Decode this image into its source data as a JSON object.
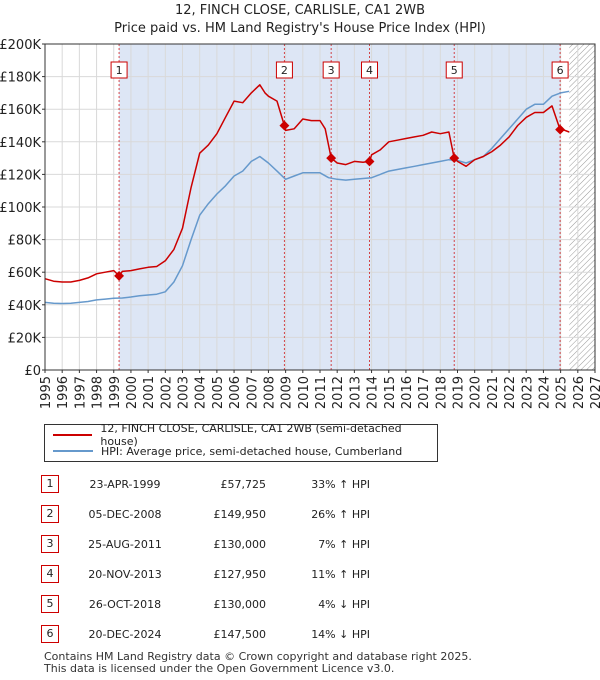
{
  "title_line1": "12, FINCH CLOSE, CARLISLE, CA1 2WB",
  "title_line2": "Price paid vs. HM Land Registry's House Price Index (HPI)",
  "colors": {
    "property": "#cc0000",
    "hpi": "#6699cc",
    "shade": "#dde6f5",
    "grid": "#d9d9d9",
    "marker_box": "#cc0000"
  },
  "chart_data": {
    "type": "line",
    "xlim": [
      1995,
      2027
    ],
    "ylim": [
      0,
      200000
    ],
    "x_ticks": [
      "1995",
      "1996",
      "1997",
      "1998",
      "1999",
      "2000",
      "2001",
      "2002",
      "2003",
      "2004",
      "2005",
      "2006",
      "2007",
      "2008",
      "2009",
      "2010",
      "2011",
      "2012",
      "2013",
      "2014",
      "2015",
      "2016",
      "2017",
      "2018",
      "2019",
      "2020",
      "2021",
      "2022",
      "2023",
      "2024",
      "2025",
      "2026",
      "2027"
    ],
    "y_ticks": [
      {
        "value": 0,
        "label": "£0"
      },
      {
        "value": 20000,
        "label": "£20K"
      },
      {
        "value": 40000,
        "label": "£40K"
      },
      {
        "value": 60000,
        "label": "£60K"
      },
      {
        "value": 80000,
        "label": "£80K"
      },
      {
        "value": 100000,
        "label": "£100K"
      },
      {
        "value": 120000,
        "label": "£120K"
      },
      {
        "value": 140000,
        "label": "£140K"
      },
      {
        "value": 160000,
        "label": "£160K"
      },
      {
        "value": 180000,
        "label": "£180K"
      },
      {
        "value": 200000,
        "label": "£200K"
      }
    ],
    "shaded_span": [
      1999.31,
      2024.97
    ],
    "hatched_from": 2025.5,
    "series": [
      {
        "name": "12, FINCH CLOSE, CARLISLE, CA1 2WB (semi-detached house)",
        "color": "#cc0000",
        "x": [
          1995,
          1995.5,
          1996,
          1996.5,
          1997,
          1997.5,
          1998,
          1998.5,
          1999,
          1999.31,
          1999.5,
          2000,
          2000.5,
          2001,
          2001.5,
          2002,
          2002.5,
          2003,
          2003.5,
          2004,
          2004.5,
          2005,
          2005.5,
          2006,
          2006.5,
          2007,
          2007.5,
          2007.8,
          2008,
          2008.5,
          2008.93,
          2009,
          2009.5,
          2010,
          2010.5,
          2011,
          2011.3,
          2011.65,
          2012,
          2012.5,
          2013,
          2013.5,
          2013.88,
          2014,
          2014.5,
          2015,
          2015.5,
          2016,
          2016.5,
          2017,
          2017.5,
          2018,
          2018.5,
          2018.81,
          2019,
          2019.5,
          2020,
          2020.5,
          2021,
          2021.5,
          2022,
          2022.5,
          2023,
          2023.5,
          2024,
          2024.5,
          2024.97,
          2025,
          2025.5
        ],
        "y": [
          56000,
          54500,
          54000,
          54000,
          55000,
          56500,
          59000,
          60000,
          61000,
          57725,
          60500,
          61000,
          62000,
          63000,
          63500,
          67000,
          74000,
          87000,
          112000,
          133000,
          138000,
          145000,
          155000,
          165000,
          164000,
          170000,
          175000,
          170000,
          168000,
          165000,
          149950,
          147000,
          148000,
          154000,
          153000,
          153000,
          148000,
          130000,
          127000,
          126000,
          128000,
          127500,
          127950,
          132000,
          135000,
          140000,
          141000,
          142000,
          143000,
          144000,
          146000,
          145000,
          146000,
          130000,
          128000,
          125000,
          129000,
          131000,
          134000,
          138000,
          143000,
          150000,
          155000,
          158000,
          158000,
          162000,
          147500,
          148000,
          146000
        ]
      },
      {
        "name": "HPI: Average price, semi-detached house, Cumberland",
        "color": "#6699cc",
        "x": [
          1995,
          1995.5,
          1996,
          1996.5,
          1997,
          1997.5,
          1998,
          1998.5,
          1999,
          1999.5,
          2000,
          2000.5,
          2001,
          2001.5,
          2002,
          2002.5,
          2003,
          2003.5,
          2004,
          2004.5,
          2005,
          2005.5,
          2006,
          2006.5,
          2007,
          2007.5,
          2008,
          2008.5,
          2009,
          2009.5,
          2010,
          2010.5,
          2011,
          2011.5,
          2012,
          2012.5,
          2013,
          2013.5,
          2014,
          2014.5,
          2015,
          2015.5,
          2016,
          2016.5,
          2017,
          2017.5,
          2018,
          2018.5,
          2019,
          2019.5,
          2020,
          2020.5,
          2021,
          2021.5,
          2022,
          2022.5,
          2023,
          2023.5,
          2024,
          2024.5,
          2025,
          2025.5
        ],
        "y": [
          41500,
          41000,
          40800,
          41000,
          41500,
          42000,
          43000,
          43500,
          44000,
          44200,
          44800,
          45500,
          46000,
          46500,
          48000,
          54000,
          64000,
          80000,
          95000,
          102000,
          108000,
          113000,
          119000,
          122000,
          128000,
          131000,
          127000,
          122000,
          117000,
          119000,
          121000,
          121000,
          121000,
          118000,
          117000,
          116500,
          117000,
          117500,
          118000,
          120000,
          122000,
          123000,
          124000,
          125000,
          126000,
          127000,
          128000,
          129000,
          128500,
          127000,
          129000,
          131000,
          136000,
          142000,
          148000,
          154000,
          160000,
          163000,
          163000,
          168000,
          170000,
          171000
        ]
      }
    ],
    "sales": [
      {
        "label": "1",
        "x": 1999.31,
        "y": 57725
      },
      {
        "label": "2",
        "x": 2008.93,
        "y": 149950
      },
      {
        "label": "3",
        "x": 2011.65,
        "y": 130000
      },
      {
        "label": "4",
        "x": 2013.88,
        "y": 127950
      },
      {
        "label": "5",
        "x": 2018.81,
        "y": 130000
      },
      {
        "label": "6",
        "x": 2024.97,
        "y": 147500
      }
    ]
  },
  "legend": {
    "property_label": "12, FINCH CLOSE, CARLISLE, CA1 2WB (semi-detached house)",
    "hpi_label": "HPI: Average price, semi-detached house, Cumberland"
  },
  "transactions": [
    {
      "num": "1",
      "date": "23-APR-1999",
      "price": "£57,725",
      "hpi": "33% ↑ HPI"
    },
    {
      "num": "2",
      "date": "05-DEC-2008",
      "price": "£149,950",
      "hpi": "26% ↑ HPI"
    },
    {
      "num": "3",
      "date": "25-AUG-2011",
      "price": "£130,000",
      "hpi": "7% ↑ HPI"
    },
    {
      "num": "4",
      "date": "20-NOV-2013",
      "price": "£127,950",
      "hpi": "11% ↑ HPI"
    },
    {
      "num": "5",
      "date": "26-OCT-2018",
      "price": "£130,000",
      "hpi": "4% ↓ HPI"
    },
    {
      "num": "6",
      "date": "20-DEC-2024",
      "price": "£147,500",
      "hpi": "14% ↓ HPI"
    }
  ],
  "footer": {
    "line1": "Contains HM Land Registry data © Crown copyright and database right 2025.",
    "line2": "This data is licensed under the Open Government Licence v3.0."
  }
}
